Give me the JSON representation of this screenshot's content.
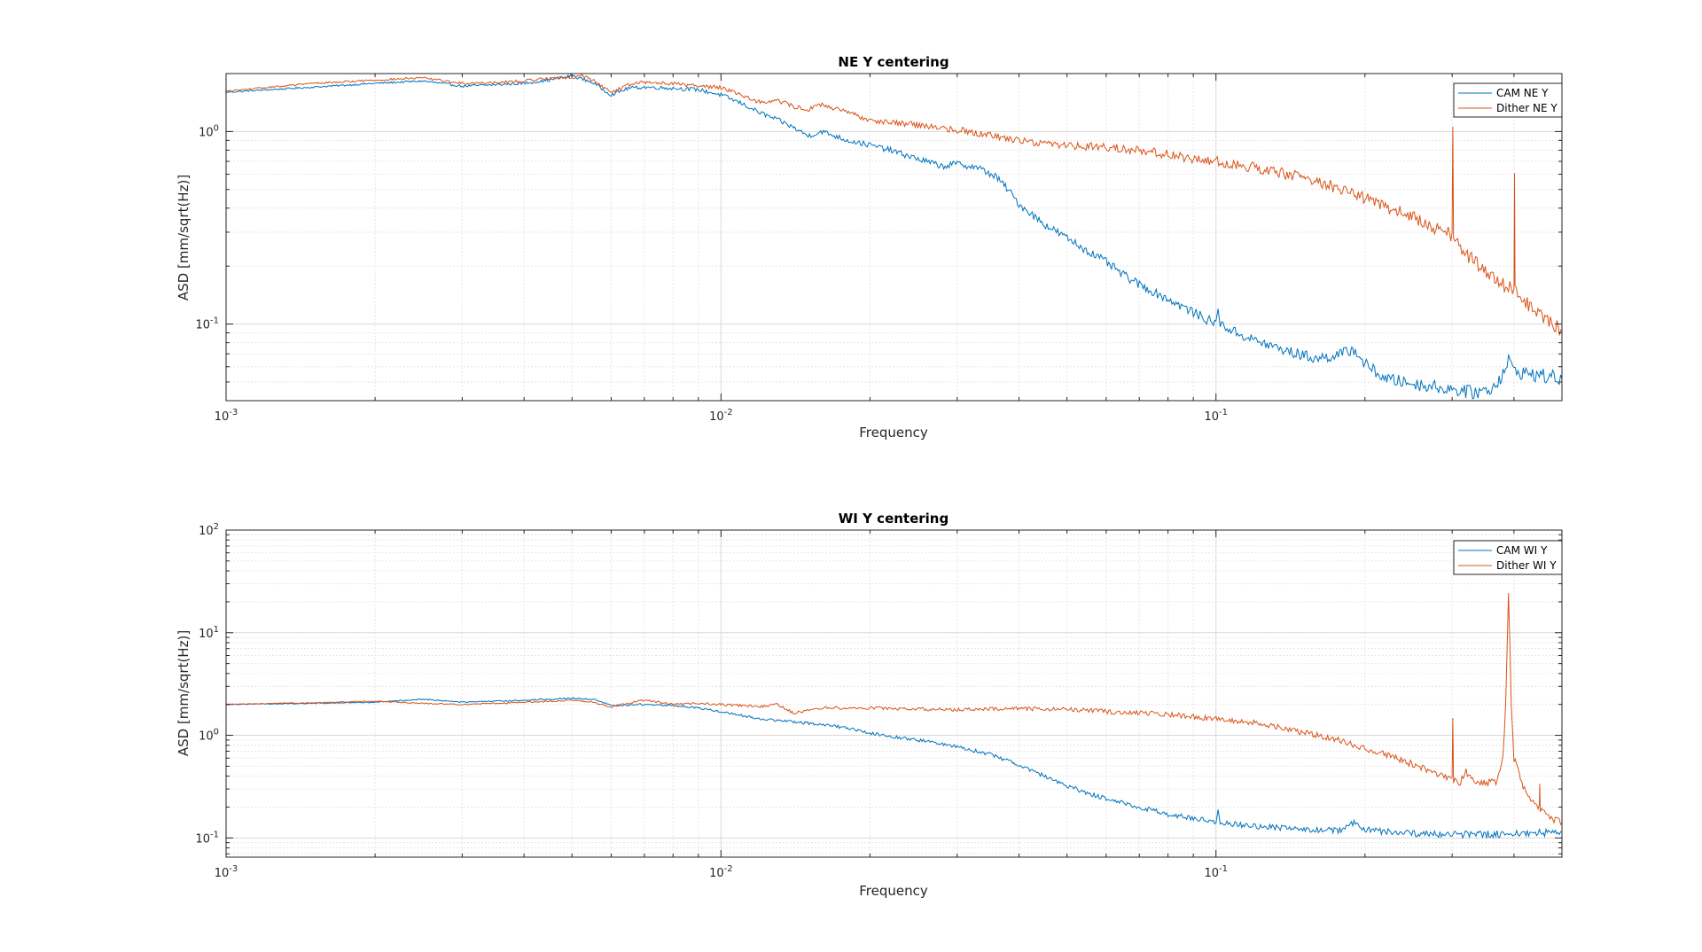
{
  "chart_data": [
    {
      "type": "line",
      "title": "NE Y centering",
      "xlabel": "Frequency",
      "ylabel": "ASD [mm/sqrt(Hz)]",
      "xscale": "log",
      "yscale": "log",
      "xlim": [
        0.001,
        0.5
      ],
      "ylim": [
        0.04,
        2.0
      ],
      "grid": true,
      "legend_position": "top-right",
      "x_ticks": [
        {
          "base": "10",
          "exp": "-3"
        },
        {
          "base": "10",
          "exp": "-2"
        },
        {
          "base": "10",
          "exp": "-1"
        }
      ],
      "y_ticks": [
        {
          "value": 0.1,
          "base": "10",
          "exp": "-1"
        },
        {
          "value": 1,
          "base": "10",
          "exp": "0"
        }
      ],
      "series": [
        {
          "name": "CAM NE Y",
          "color": "#0072bd",
          "points": [
            [
              0.001,
              1.6
            ],
            [
              0.0015,
              1.7
            ],
            [
              0.002,
              1.78
            ],
            [
              0.0025,
              1.83
            ],
            [
              0.003,
              1.72
            ],
            [
              0.0035,
              1.75
            ],
            [
              0.004,
              1.78
            ],
            [
              0.0045,
              1.85
            ],
            [
              0.005,
              1.95
            ],
            [
              0.0055,
              1.8
            ],
            [
              0.006,
              1.55
            ],
            [
              0.0065,
              1.68
            ],
            [
              0.007,
              1.7
            ],
            [
              0.008,
              1.68
            ],
            [
              0.009,
              1.65
            ],
            [
              0.01,
              1.55
            ],
            [
              0.011,
              1.4
            ],
            [
              0.012,
              1.25
            ],
            [
              0.013,
              1.15
            ],
            [
              0.014,
              1.05
            ],
            [
              0.015,
              0.95
            ],
            [
              0.016,
              1.0
            ],
            [
              0.018,
              0.9
            ],
            [
              0.02,
              0.85
            ],
            [
              0.022,
              0.8
            ],
            [
              0.025,
              0.72
            ],
            [
              0.028,
              0.66
            ],
            [
              0.03,
              0.68
            ],
            [
              0.033,
              0.65
            ],
            [
              0.036,
              0.58
            ],
            [
              0.038,
              0.5
            ],
            [
              0.04,
              0.42
            ],
            [
              0.045,
              0.33
            ],
            [
              0.05,
              0.28
            ],
            [
              0.055,
              0.24
            ],
            [
              0.06,
              0.21
            ],
            [
              0.065,
              0.18
            ],
            [
              0.07,
              0.16
            ],
            [
              0.08,
              0.135
            ],
            [
              0.09,
              0.115
            ],
            [
              0.1,
              0.1
            ],
            [
              0.101,
              0.125
            ],
            [
              0.102,
              0.1
            ],
            [
              0.11,
              0.09
            ],
            [
              0.12,
              0.082
            ],
            [
              0.14,
              0.072
            ],
            [
              0.16,
              0.066
            ],
            [
              0.18,
              0.07
            ],
            [
              0.19,
              0.074
            ],
            [
              0.2,
              0.062
            ],
            [
              0.22,
              0.052
            ],
            [
              0.25,
              0.049
            ],
            [
              0.28,
              0.047
            ],
            [
              0.3,
              0.046
            ],
            [
              0.33,
              0.044
            ],
            [
              0.36,
              0.046
            ],
            [
              0.38,
              0.055
            ],
            [
              0.39,
              0.065
            ],
            [
              0.4,
              0.057
            ],
            [
              0.45,
              0.054
            ],
            [
              0.5,
              0.052
            ]
          ]
        },
        {
          "name": "Dither NE Y",
          "color": "#d95319",
          "points": [
            [
              0.001,
              1.62
            ],
            [
              0.0015,
              1.78
            ],
            [
              0.002,
              1.85
            ],
            [
              0.0025,
              1.9
            ],
            [
              0.003,
              1.78
            ],
            [
              0.0035,
              1.8
            ],
            [
              0.004,
              1.83
            ],
            [
              0.0045,
              1.9
            ],
            [
              0.005,
              1.9
            ],
            [
              0.0052,
              1.97
            ],
            [
              0.0055,
              1.85
            ],
            [
              0.006,
              1.6
            ],
            [
              0.0065,
              1.75
            ],
            [
              0.007,
              1.8
            ],
            [
              0.008,
              1.78
            ],
            [
              0.009,
              1.72
            ],
            [
              0.01,
              1.7
            ],
            [
              0.011,
              1.55
            ],
            [
              0.012,
              1.42
            ],
            [
              0.013,
              1.45
            ],
            [
              0.014,
              1.35
            ],
            [
              0.015,
              1.3
            ],
            [
              0.016,
              1.38
            ],
            [
              0.018,
              1.25
            ],
            [
              0.02,
              1.15
            ],
            [
              0.025,
              1.08
            ],
            [
              0.03,
              1.02
            ],
            [
              0.035,
              0.96
            ],
            [
              0.04,
              0.9
            ],
            [
              0.045,
              0.87
            ],
            [
              0.05,
              0.85
            ],
            [
              0.06,
              0.83
            ],
            [
              0.07,
              0.8
            ],
            [
              0.08,
              0.76
            ],
            [
              0.09,
              0.72
            ],
            [
              0.1,
              0.7
            ],
            [
              0.12,
              0.65
            ],
            [
              0.14,
              0.6
            ],
            [
              0.16,
              0.55
            ],
            [
              0.18,
              0.5
            ],
            [
              0.2,
              0.45
            ],
            [
              0.22,
              0.41
            ],
            [
              0.25,
              0.36
            ],
            [
              0.28,
              0.31
            ],
            [
              0.3,
              0.29
            ],
            [
              0.301,
              1.05
            ],
            [
              0.302,
              0.28
            ],
            [
              0.32,
              0.23
            ],
            [
              0.35,
              0.19
            ],
            [
              0.38,
              0.16
            ],
            [
              0.4,
              0.15
            ],
            [
              0.401,
              0.6
            ],
            [
              0.402,
              0.145
            ],
            [
              0.42,
              0.13
            ],
            [
              0.45,
              0.115
            ],
            [
              0.48,
              0.1
            ],
            [
              0.5,
              0.092
            ]
          ]
        }
      ]
    },
    {
      "type": "line",
      "title": "WI Y centering",
      "xlabel": "Frequency",
      "ylabel": "ASD [mm/sqrt(Hz)]",
      "xscale": "log",
      "yscale": "log",
      "xlim": [
        0.001,
        0.5
      ],
      "ylim": [
        0.065,
        100
      ],
      "grid": true,
      "legend_position": "top-right",
      "x_ticks": [
        {
          "base": "10",
          "exp": "-3"
        },
        {
          "base": "10",
          "exp": "-2"
        },
        {
          "base": "10",
          "exp": "-1"
        }
      ],
      "y_ticks": [
        {
          "value": 0.1,
          "base": "10",
          "exp": "-1"
        },
        {
          "value": 1,
          "base": "10",
          "exp": "0"
        },
        {
          "value": 10,
          "base": "10",
          "exp": "1"
        },
        {
          "value": 100,
          "base": "10",
          "exp": "2"
        }
      ],
      "series": [
        {
          "name": "CAM WI Y",
          "color": "#0072bd",
          "points": [
            [
              0.001,
              2.0
            ],
            [
              0.0015,
              2.05
            ],
            [
              0.002,
              2.1
            ],
            [
              0.0025,
              2.25
            ],
            [
              0.003,
              2.1
            ],
            [
              0.0035,
              2.15
            ],
            [
              0.004,
              2.2
            ],
            [
              0.005,
              2.3
            ],
            [
              0.0055,
              2.25
            ],
            [
              0.006,
              1.95
            ],
            [
              0.007,
              2.0
            ],
            [
              0.008,
              1.95
            ],
            [
              0.009,
              1.85
            ],
            [
              0.01,
              1.7
            ],
            [
              0.012,
              1.45
            ],
            [
              0.014,
              1.35
            ],
            [
              0.016,
              1.28
            ],
            [
              0.018,
              1.18
            ],
            [
              0.02,
              1.05
            ],
            [
              0.025,
              0.9
            ],
            [
              0.03,
              0.78
            ],
            [
              0.035,
              0.65
            ],
            [
              0.04,
              0.52
            ],
            [
              0.045,
              0.4
            ],
            [
              0.05,
              0.32
            ],
            [
              0.06,
              0.24
            ],
            [
              0.07,
              0.2
            ],
            [
              0.08,
              0.17
            ],
            [
              0.09,
              0.155
            ],
            [
              0.1,
              0.145
            ],
            [
              0.101,
              0.18
            ],
            [
              0.102,
              0.14
            ],
            [
              0.12,
              0.13
            ],
            [
              0.14,
              0.125
            ],
            [
              0.16,
              0.12
            ],
            [
              0.18,
              0.118
            ],
            [
              0.19,
              0.14
            ],
            [
              0.2,
              0.12
            ],
            [
              0.22,
              0.115
            ],
            [
              0.25,
              0.11
            ],
            [
              0.3,
              0.108
            ],
            [
              0.35,
              0.108
            ],
            [
              0.4,
              0.11
            ],
            [
              0.45,
              0.112
            ],
            [
              0.5,
              0.115
            ]
          ]
        },
        {
          "name": "Dither WI Y",
          "color": "#d95319",
          "points": [
            [
              0.001,
              2.0
            ],
            [
              0.0015,
              2.08
            ],
            [
              0.002,
              2.15
            ],
            [
              0.0025,
              2.05
            ],
            [
              0.003,
              2.0
            ],
            [
              0.0035,
              2.05
            ],
            [
              0.004,
              2.1
            ],
            [
              0.005,
              2.2
            ],
            [
              0.0055,
              2.1
            ],
            [
              0.006,
              1.9
            ],
            [
              0.0065,
              2.05
            ],
            [
              0.007,
              2.2
            ],
            [
              0.008,
              2.0
            ],
            [
              0.009,
              2.05
            ],
            [
              0.01,
              2.0
            ],
            [
              0.012,
              1.9
            ],
            [
              0.013,
              2.0
            ],
            [
              0.014,
              1.65
            ],
            [
              0.016,
              1.85
            ],
            [
              0.02,
              1.85
            ],
            [
              0.025,
              1.8
            ],
            [
              0.03,
              1.78
            ],
            [
              0.04,
              1.82
            ],
            [
              0.05,
              1.8
            ],
            [
              0.06,
              1.7
            ],
            [
              0.07,
              1.65
            ],
            [
              0.08,
              1.6
            ],
            [
              0.09,
              1.52
            ],
            [
              0.1,
              1.45
            ],
            [
              0.12,
              1.32
            ],
            [
              0.14,
              1.15
            ],
            [
              0.16,
              1.0
            ],
            [
              0.18,
              0.88
            ],
            [
              0.2,
              0.75
            ],
            [
              0.22,
              0.65
            ],
            [
              0.25,
              0.52
            ],
            [
              0.28,
              0.42
            ],
            [
              0.3,
              0.38
            ],
            [
              0.301,
              1.5
            ],
            [
              0.302,
              0.37
            ],
            [
              0.31,
              0.33
            ],
            [
              0.32,
              0.44
            ],
            [
              0.33,
              0.36
            ],
            [
              0.35,
              0.34
            ],
            [
              0.37,
              0.36
            ],
            [
              0.38,
              0.6
            ],
            [
              0.385,
              2.0
            ],
            [
              0.39,
              25
            ],
            [
              0.395,
              2.0
            ],
            [
              0.4,
              0.6
            ],
            [
              0.42,
              0.3
            ],
            [
              0.44,
              0.22
            ],
            [
              0.45,
              0.2
            ],
            [
              0.451,
              0.35
            ],
            [
              0.452,
              0.19
            ],
            [
              0.47,
              0.16
            ],
            [
              0.5,
              0.14
            ]
          ]
        }
      ]
    }
  ]
}
